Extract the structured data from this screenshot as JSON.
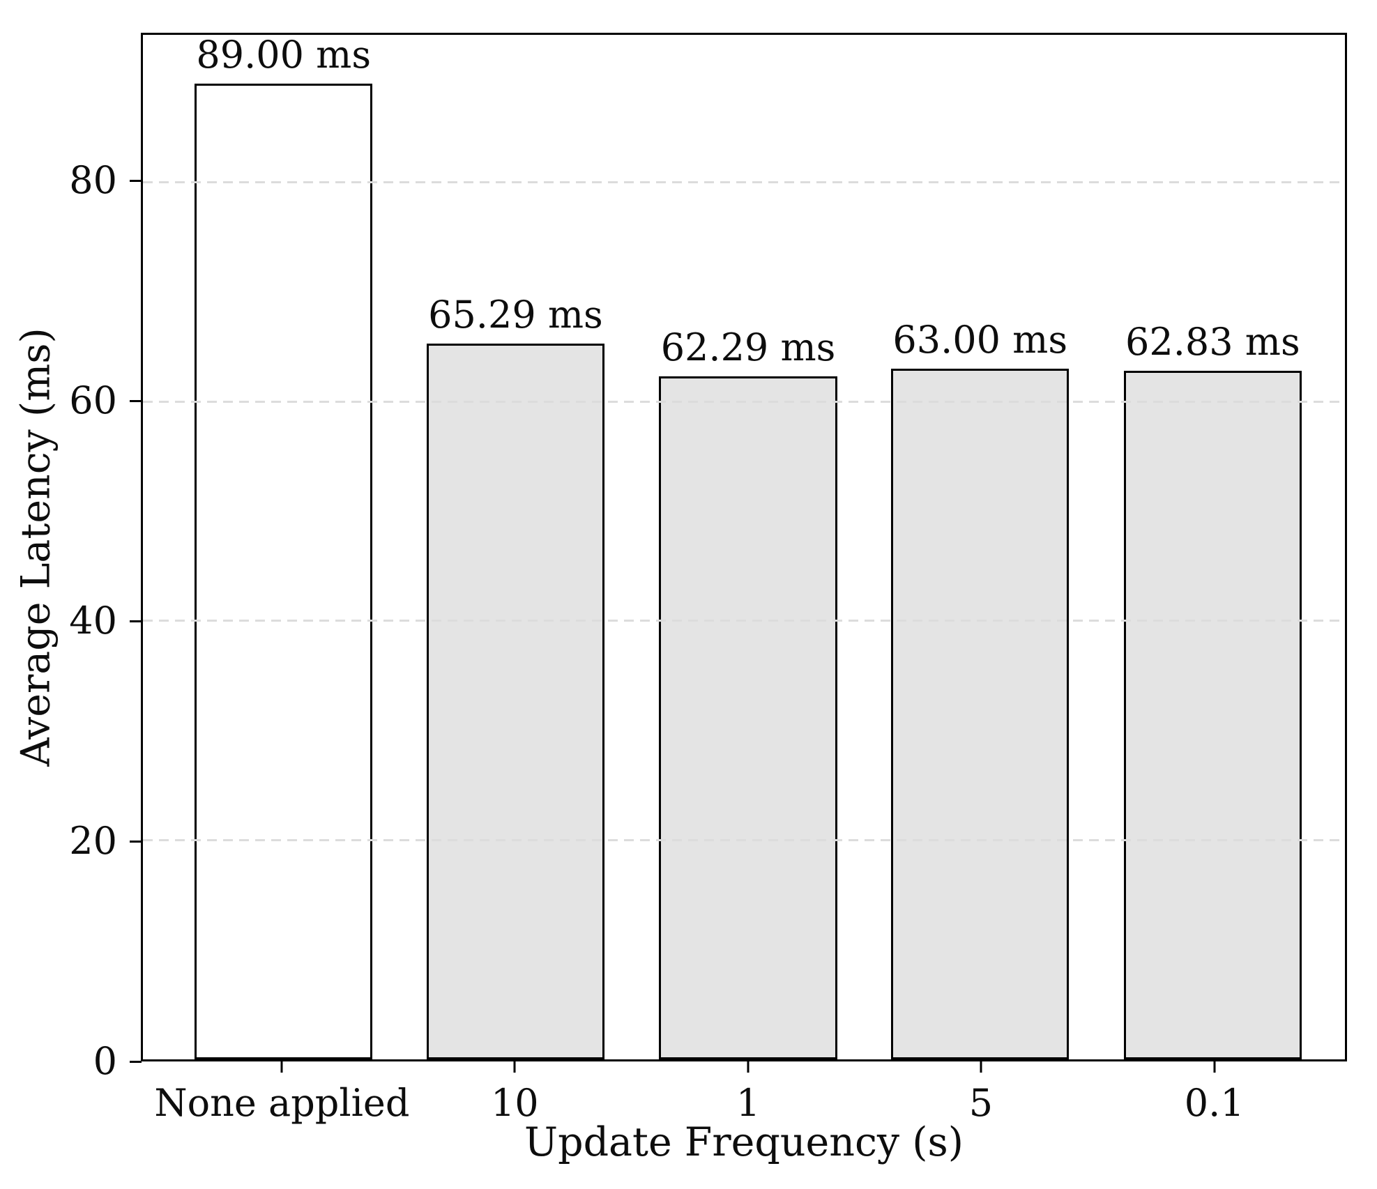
{
  "chart_data": {
    "type": "bar",
    "title": "",
    "xlabel": "Update Frequency (s)",
    "ylabel": "Average Latency (ms)",
    "categories": [
      "None applied",
      "10",
      "1",
      "5",
      "0.1"
    ],
    "values": [
      89.0,
      65.29,
      62.29,
      63.0,
      62.83
    ],
    "bar_labels": [
      "89.00 ms",
      "65.29 ms",
      "62.29 ms",
      "63.00 ms",
      "62.83 ms"
    ],
    "ylim": [
      0,
      93.45
    ],
    "yticks": [
      0,
      20,
      40,
      60,
      80
    ],
    "ytick_labels": [
      "0",
      "20",
      "40",
      "60",
      "80"
    ],
    "grid": "horizontal dashed, drawn above bars",
    "legend": "none",
    "colors": {
      "bar_fills": [
        "#ffffff",
        "#e4e4e4",
        "#e4e4e4",
        "#e4e4e4",
        "#e4e4e4"
      ],
      "bar_edge": "#000000",
      "gridline": "#dcdcdc",
      "axis": "#000000",
      "text": "#0d0d0d",
      "background": "#ffffff"
    }
  }
}
